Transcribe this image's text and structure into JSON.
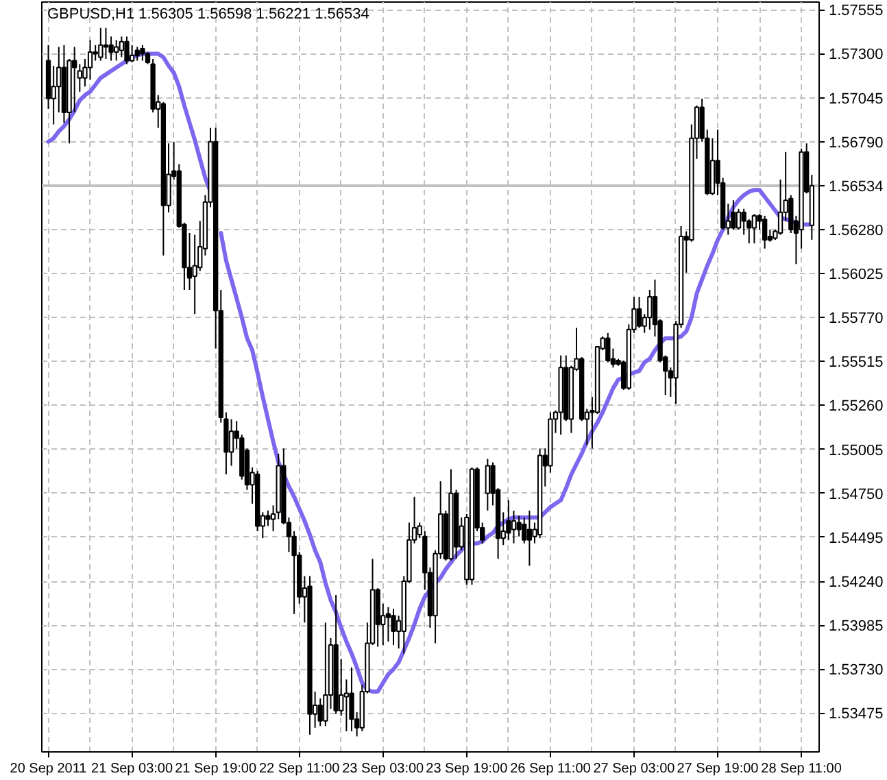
{
  "chart_data": {
    "type": "candlestick",
    "title": "GBPUSD,H1  1.56305 1.56598 1.56221 1.56534",
    "color": "#000000",
    "categories": [
      "20 Sep 2011",
      null,
      null,
      null,
      null,
      null,
      null,
      null,
      null,
      null,
      null,
      null,
      null,
      null,
      null,
      null,
      "21 Sep 03:00",
      null,
      null,
      null,
      null,
      null,
      null,
      null,
      null,
      null,
      null,
      null,
      null,
      null,
      null,
      null,
      "21 Sep 19:00",
      null,
      null,
      null,
      null,
      null,
      null,
      null,
      null,
      null,
      null,
      null,
      null,
      null,
      null,
      null,
      "22 Sep 11:00",
      null,
      null,
      null,
      null,
      null,
      null,
      null,
      null,
      null,
      null,
      null,
      null,
      null,
      null,
      null,
      "23 Sep 03:00",
      null,
      null,
      null,
      null,
      null,
      null,
      null,
      null,
      null,
      null,
      null,
      null,
      null,
      null,
      null,
      "23 Sep 19:00",
      null,
      null,
      null,
      null,
      null,
      null,
      null,
      null,
      null,
      null,
      null,
      null,
      null,
      null,
      null,
      "26 Sep 11:00",
      null,
      null,
      null,
      null,
      null,
      null,
      null,
      null,
      null,
      null,
      null,
      null,
      null,
      null,
      null,
      "27 Sep 03:00",
      null,
      null,
      null,
      null,
      null,
      null,
      null,
      null,
      null,
      null,
      null,
      null,
      null,
      null,
      null,
      "27 Sep 19:00",
      null,
      null,
      null,
      null,
      null,
      null,
      null,
      null,
      null,
      null,
      null,
      null,
      null,
      null,
      null,
      "28 Sep 11:00",
      null,
      null
    ],
    "ohlc": [
      [
        1.5726,
        1.5735,
        1.5698,
        1.5704
      ],
      [
        1.5704,
        1.5723,
        1.5689,
        1.5711
      ],
      [
        1.5711,
        1.5734,
        1.5696,
        1.5722
      ],
      [
        1.5722,
        1.5735,
        1.569,
        1.5696
      ],
      [
        1.5696,
        1.5727,
        1.5678,
        1.5726
      ],
      [
        1.5726,
        1.5734,
        1.5696,
        1.5722
      ],
      [
        1.5716,
        1.5724,
        1.5708,
        1.572
      ],
      [
        1.5716,
        1.5727,
        1.5711,
        1.5722
      ],
      [
        1.5722,
        1.5738,
        1.5715,
        1.5731
      ],
      [
        1.5731,
        1.5735,
        1.5726,
        1.573
      ],
      [
        1.5728,
        1.5745,
        1.5726,
        1.5735
      ],
      [
        1.5735,
        1.5745,
        1.5727,
        1.5734
      ],
      [
        1.5735,
        1.574,
        1.5726,
        1.5731
      ],
      [
        1.5731,
        1.5738,
        1.5726,
        1.5734
      ],
      [
        1.5732,
        1.574,
        1.5728,
        1.5737
      ],
      [
        1.5737,
        1.574,
        1.5724,
        1.5726
      ],
      [
        1.5726,
        1.5735,
        1.5725,
        1.5729
      ],
      [
        1.5732,
        1.5734,
        1.5726,
        1.5729
      ],
      [
        1.5733,
        1.5735,
        1.5726,
        1.573
      ],
      [
        1.573,
        1.5731,
        1.5724,
        1.5725
      ],
      [
        1.5724,
        1.5727,
        1.5696,
        1.5698
      ],
      [
        1.5698,
        1.5706,
        1.5687,
        1.5702
      ],
      [
        1.5701,
        1.5702,
        1.5613,
        1.5642
      ],
      [
        1.5642,
        1.5678,
        1.5638,
        1.566
      ],
      [
        1.5662,
        1.5679,
        1.5657,
        1.5659
      ],
      [
        1.5662,
        1.5666,
        1.5629,
        1.563
      ],
      [
        1.5631,
        1.5632,
        1.5593,
        1.5606
      ],
      [
        1.5606,
        1.5626,
        1.5593,
        1.56
      ],
      [
        1.5601,
        1.5625,
        1.5579,
        1.5607
      ],
      [
        1.5606,
        1.5633,
        1.5604,
        1.5618
      ],
      [
        1.5617,
        1.5648,
        1.5613,
        1.5644
      ],
      [
        1.5644,
        1.5687,
        1.5641,
        1.5679
      ],
      [
        1.5679,
        1.5687,
        1.5559,
        1.5581
      ],
      [
        1.5581,
        1.5593,
        1.5516,
        1.5519
      ],
      [
        1.5518,
        1.5522,
        1.5486,
        1.5499
      ],
      [
        1.5499,
        1.5518,
        1.5491,
        1.5511
      ],
      [
        1.5511,
        1.5517,
        1.5501,
        1.5507
      ],
      [
        1.5507,
        1.5509,
        1.5483,
        1.5485
      ],
      [
        1.55,
        1.5501,
        1.5477,
        1.548
      ],
      [
        1.548,
        1.549,
        1.5469,
        1.5487
      ],
      [
        1.5486,
        1.5488,
        1.5453,
        1.5456
      ],
      [
        1.5456,
        1.5464,
        1.5449,
        1.5462
      ],
      [
        1.5462,
        1.5465,
        1.5456,
        1.546
      ],
      [
        1.546,
        1.5468,
        1.5453,
        1.5463
      ],
      [
        1.5464,
        1.5498,
        1.546,
        1.5491
      ],
      [
        1.5491,
        1.5501,
        1.5457,
        1.5458
      ],
      [
        1.5458,
        1.5461,
        1.5441,
        1.545
      ],
      [
        1.545,
        1.5453,
        1.5405,
        1.5439
      ],
      [
        1.5439,
        1.5441,
        1.5411,
        1.5415
      ],
      [
        1.5415,
        1.5427,
        1.54,
        1.542
      ],
      [
        1.5421,
        1.5427,
        1.5335,
        1.5347
      ],
      [
        1.5347,
        1.536,
        1.5339,
        1.5352
      ],
      [
        1.5352,
        1.5356,
        1.534,
        1.5343
      ],
      [
        1.5343,
        1.54,
        1.534,
        1.5358
      ],
      [
        1.5358,
        1.5391,
        1.535,
        1.5387
      ],
      [
        1.5387,
        1.5416,
        1.5347,
        1.5349
      ],
      [
        1.5349,
        1.5379,
        1.5346,
        1.5358
      ],
      [
        1.5357,
        1.5367,
        1.5337,
        1.5359
      ],
      [
        1.5359,
        1.5374,
        1.5337,
        1.5344
      ],
      [
        1.5344,
        1.5348,
        1.5334,
        1.5339
      ],
      [
        1.5339,
        1.5364,
        1.5337,
        1.536
      ],
      [
        1.536,
        1.54,
        1.5359,
        1.5388
      ],
      [
        1.5388,
        1.5437,
        1.5387,
        1.5419
      ],
      [
        1.5419,
        1.542,
        1.5386,
        1.5399
      ],
      [
        1.5399,
        1.5411,
        1.5387,
        1.5404
      ],
      [
        1.5405,
        1.5409,
        1.5389,
        1.5403
      ],
      [
        1.5404,
        1.5408,
        1.5387,
        1.5395
      ],
      [
        1.5395,
        1.5404,
        1.5385,
        1.5401
      ],
      [
        1.5395,
        1.5427,
        1.5382,
        1.5424
      ],
      [
        1.5424,
        1.5458,
        1.5423,
        1.5448
      ],
      [
        1.5448,
        1.5473,
        1.5446,
        1.5455
      ],
      [
        1.5451,
        1.5458,
        1.5449,
        1.5456
      ],
      [
        1.545,
        1.5453,
        1.5419,
        1.5429
      ],
      [
        1.5429,
        1.5432,
        1.5397,
        1.5404
      ],
      [
        1.5404,
        1.5442,
        1.5388,
        1.544
      ],
      [
        1.544,
        1.5482,
        1.5437,
        1.5463
      ],
      [
        1.5463,
        1.5465,
        1.5436,
        1.5437
      ],
      [
        1.5437,
        1.5489,
        1.5436,
        1.5475
      ],
      [
        1.5475,
        1.5477,
        1.5437,
        1.5444
      ],
      [
        1.5444,
        1.5461,
        1.5442,
        1.5456
      ],
      [
        1.5425,
        1.5463,
        1.5422,
        1.5461
      ],
      [
        1.5425,
        1.549,
        1.5422,
        1.5489
      ],
      [
        1.5489,
        1.549,
        1.5453,
        1.5455
      ],
      [
        1.5455,
        1.5458,
        1.5446,
        1.5448
      ],
      [
        1.5475,
        1.5495,
        1.5465,
        1.5491
      ],
      [
        1.5491,
        1.5493,
        1.5468,
        1.5475
      ],
      [
        1.5477,
        1.5478,
        1.5437,
        1.5449
      ],
      [
        1.5449,
        1.5464,
        1.5445,
        1.5453
      ],
      [
        1.5459,
        1.5471,
        1.5448,
        1.5452
      ],
      [
        1.5454,
        1.5465,
        1.5446,
        1.5459
      ],
      [
        1.5458,
        1.5462,
        1.545,
        1.5454
      ],
      [
        1.5457,
        1.5461,
        1.5446,
        1.5448
      ],
      [
        1.5454,
        1.5465,
        1.5433,
        1.5448
      ],
      [
        1.545,
        1.5458,
        1.5446,
        1.5454
      ],
      [
        1.5451,
        1.5501,
        1.5449,
        1.5497
      ],
      [
        1.5497,
        1.5501,
        1.5479,
        1.5491
      ],
      [
        1.5491,
        1.5522,
        1.5487,
        1.5518
      ],
      [
        1.5518,
        1.5523,
        1.551,
        1.5522
      ],
      [
        1.5522,
        1.5555,
        1.5509,
        1.5548
      ],
      [
        1.5548,
        1.5555,
        1.5517,
        1.5518
      ],
      [
        1.5518,
        1.5549,
        1.551,
        1.5548
      ],
      [
        1.5547,
        1.5571,
        1.5546,
        1.5553
      ],
      [
        1.5553,
        1.5554,
        1.5517,
        1.5518
      ],
      [
        1.5518,
        1.5524,
        1.5503,
        1.5522
      ],
      [
        1.5523,
        1.5531,
        1.5501,
        1.5522
      ],
      [
        1.5522,
        1.556,
        1.5521,
        1.556
      ],
      [
        1.5559,
        1.5566,
        1.5558,
        1.5565
      ],
      [
        1.5565,
        1.5568,
        1.5551,
        1.5552
      ],
      [
        1.5553,
        1.5559,
        1.5548,
        1.555
      ],
      [
        1.5552,
        1.5553,
        1.5549,
        1.555
      ],
      [
        1.5551,
        1.5552,
        1.5535,
        1.5536
      ],
      [
        1.5536,
        1.5573,
        1.5535,
        1.557
      ],
      [
        1.557,
        1.5589,
        1.5568,
        1.5582
      ],
      [
        1.5582,
        1.5589,
        1.5571,
        1.5572
      ],
      [
        1.5572,
        1.5579,
        1.5568,
        1.5577
      ],
      [
        1.5577,
        1.5593,
        1.557,
        1.5589
      ],
      [
        1.5589,
        1.5599,
        1.5566,
        1.5573
      ],
      [
        1.5575,
        1.5576,
        1.5551,
        1.5552
      ],
      [
        1.5554,
        1.5555,
        1.5532,
        1.5546
      ],
      [
        1.5546,
        1.5548,
        1.5531,
        1.5542
      ],
      [
        1.5542,
        1.5575,
        1.5527,
        1.5573
      ],
      [
        1.5573,
        1.563,
        1.5571,
        1.5624
      ],
      [
        1.5624,
        1.5627,
        1.5603,
        1.5622
      ],
      [
        1.5622,
        1.5689,
        1.5621,
        1.5681
      ],
      [
        1.5681,
        1.57,
        1.5669,
        1.5699
      ],
      [
        1.5699,
        1.5704,
        1.5679,
        1.5681
      ],
      [
        1.5681,
        1.5686,
        1.5648,
        1.5649
      ],
      [
        1.5649,
        1.5681,
        1.5648,
        1.5668
      ],
      [
        1.5668,
        1.5686,
        1.5648,
        1.5655
      ],
      [
        1.5655,
        1.5658,
        1.5628,
        1.5629
      ],
      [
        1.5629,
        1.5643,
        1.5625,
        1.5633
      ],
      [
        1.5638,
        1.5645,
        1.5628,
        1.5629
      ],
      [
        1.5629,
        1.564,
        1.5628,
        1.5638
      ],
      [
        1.5638,
        1.564,
        1.5625,
        1.5633
      ],
      [
        1.5633,
        1.5634,
        1.562,
        1.5629
      ],
      [
        1.5629,
        1.5637,
        1.562,
        1.5636
      ],
      [
        1.5636,
        1.5637,
        1.5628,
        1.5633
      ],
      [
        1.5634,
        1.5636,
        1.5617,
        1.5622
      ],
      [
        1.5624,
        1.5628,
        1.5621,
        1.5622
      ],
      [
        1.5623,
        1.5628,
        1.5622,
        1.5627
      ],
      [
        1.5626,
        1.5657,
        1.5625,
        1.5638
      ],
      [
        1.5638,
        1.5673,
        1.5633,
        1.5645
      ],
      [
        1.5646,
        1.5648,
        1.5626,
        1.5628
      ],
      [
        1.5633,
        1.5636,
        1.5608,
        1.5626
      ],
      [
        1.5628,
        1.5675,
        1.5617,
        1.5673
      ],
      [
        1.5673,
        1.5678,
        1.5649,
        1.565
      ],
      [
        1.56305,
        1.56598,
        1.56221,
        1.56534
      ]
    ],
    "series": [
      {
        "type": "line",
        "color": "#7b68ee",
        "values": [
          1.5679,
          1.5681,
          1.5685,
          1.5688,
          1.5692,
          1.5697,
          1.5703,
          1.5706,
          1.5708,
          1.5712,
          1.5716,
          1.5718,
          1.572,
          1.5722,
          1.5724,
          1.5726,
          1.5728,
          1.5729,
          1.573,
          1.573,
          1.573,
          1.573,
          1.5728,
          1.5723,
          1.5719,
          1.5711,
          1.57,
          1.569,
          1.568,
          1.5669,
          1.5658,
          1.565,
          null,
          1.5626,
          1.561,
          1.5599,
          1.5588,
          1.5577,
          1.5565,
          1.5558,
          1.5545,
          1.5531,
          1.5518,
          1.5505,
          1.5493,
          1.5486,
          1.5479,
          1.5473,
          1.5466,
          1.5459,
          1.5451,
          1.5442,
          1.5435,
          1.5423,
          1.5413,
          1.5406,
          1.5397,
          1.5389,
          1.5382,
          1.5374,
          1.5365,
          1.5361,
          1.536,
          1.536,
          1.5365,
          1.537,
          1.5373,
          1.5377,
          1.5384,
          1.5391,
          1.5399,
          1.5408,
          1.5415,
          1.5419,
          1.5423,
          1.5426,
          1.5431,
          1.5435,
          1.5439,
          1.5442,
          1.5446,
          1.5446,
          1.5446,
          1.5447,
          1.545,
          1.5452,
          1.5456,
          1.5458,
          1.546,
          1.5461,
          1.5461,
          1.5461,
          1.5461,
          1.5461,
          1.5461,
          1.5464,
          1.5467,
          1.5469,
          1.5471,
          1.5478,
          1.5486,
          1.5492,
          1.5498,
          1.5505,
          1.5511,
          1.5516,
          1.5522,
          1.5529,
          1.5536,
          1.5541,
          1.5542,
          1.5544,
          1.5545,
          1.5546,
          1.5551,
          1.5553,
          1.5558,
          1.5562,
          1.5565,
          1.5565,
          1.5565,
          1.5566,
          1.5569,
          1.5577,
          1.5591,
          1.5599,
          1.5607,
          1.5614,
          1.5622,
          1.5628,
          1.5635,
          1.5641,
          1.5645,
          1.5648,
          1.565,
          1.5651,
          1.5651,
          1.5647,
          1.5643,
          1.5639,
          1.5635,
          1.5634,
          1.5633,
          1.5632,
          1.5631,
          1.5631,
          1.5631
        ]
      }
    ],
    "ylim": [
      1.5325,
      1.576
    ],
    "yticks": [
      1.53475,
      {
        "value": 1.5373,
        "label": "1.53730"
      },
      1.53985,
      {
        "value": 1.5424,
        "label": "1.54240"
      },
      1.54495,
      {
        "value": 1.5475,
        "label": "1.54750"
      },
      1.55005,
      {
        "value": 1.5526,
        "label": "1.55260"
      },
      1.55515,
      {
        "value": 1.5577,
        "label": "1.55770"
      },
      1.56025,
      {
        "value": 1.5628,
        "label": "1.56280"
      },
      {
        "value": 1.56535,
        "label": null
      },
      {
        "value": 1.5679,
        "label": "1.56790"
      },
      1.57045,
      {
        "value": 1.573,
        "label": "1.57300"
      },
      1.57555
    ],
    "grid": true,
    "ref_lines": [
      {
        "axis": "y",
        "value": 1.56534,
        "label": "1.56534",
        "color": "#c0c0c0"
      }
    ]
  }
}
